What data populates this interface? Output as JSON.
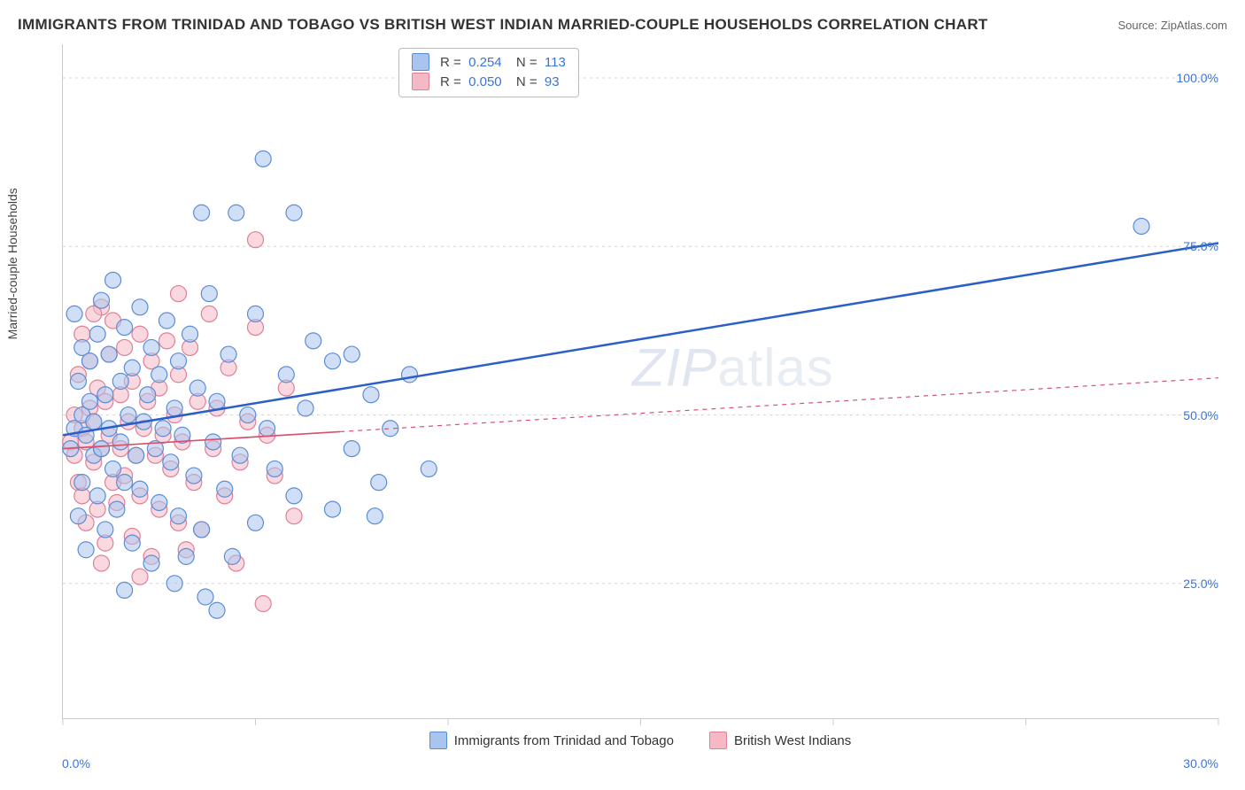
{
  "title": "IMMIGRANTS FROM TRINIDAD AND TOBAGO VS BRITISH WEST INDIAN MARRIED-COUPLE HOUSEHOLDS CORRELATION CHART",
  "source": "Source: ZipAtlas.com",
  "watermark": "ZIPatlas",
  "y_label": "Married-couple Households",
  "chart": {
    "type": "scatter",
    "background_color": "#ffffff",
    "grid_color": "#d6d6d6",
    "grid_dash": "3,4",
    "axis_color": "#cccccc",
    "xlim": [
      0,
      30
    ],
    "ylim": [
      5,
      105
    ],
    "x_ticks": [
      0,
      5,
      10,
      15,
      20,
      25,
      30
    ],
    "x_tick_labels_shown": {
      "0": "0.0%",
      "30": "30.0%"
    },
    "y_gridlines": [
      25,
      50,
      75,
      100
    ],
    "y_tick_labels": {
      "25": "25.0%",
      "50": "50.0%",
      "75": "75.0%",
      "100": "100.0%"
    },
    "tick_label_color": "#3b74d8",
    "marker_radius": 9,
    "marker_opacity": 0.55,
    "series": [
      {
        "key": "trinidad",
        "label": "Immigrants from Trinidad and Tobago",
        "fill": "#a9c5ef",
        "stroke": "#5c8cd6",
        "trend": {
          "x1": 0,
          "y1": 47,
          "x2": 30,
          "y2": 75.5,
          "solid_to_x": 30,
          "color": "#2a5fc7",
          "width": 2.5,
          "dash": ""
        },
        "stats": {
          "R": "0.254",
          "N": "113"
        }
      },
      {
        "key": "bwi",
        "label": "British West Indians",
        "fill": "#f4b9c5",
        "stroke": "#e07f95",
        "trend": {
          "x1": 0,
          "y1": 45,
          "x2": 30,
          "y2": 55.5,
          "solid_to_x": 7.2,
          "color": "#d94f6d",
          "width": 1.7,
          "dash": "5,5"
        },
        "stats": {
          "R": "0.050",
          "N": "93"
        }
      }
    ],
    "points": {
      "trinidad": [
        [
          0.2,
          45
        ],
        [
          0.3,
          48
        ],
        [
          0.3,
          65
        ],
        [
          0.4,
          35
        ],
        [
          0.4,
          55
        ],
        [
          0.5,
          40
        ],
        [
          0.5,
          50
        ],
        [
          0.5,
          60
        ],
        [
          0.6,
          30
        ],
        [
          0.6,
          47
        ],
        [
          0.7,
          52
        ],
        [
          0.7,
          58
        ],
        [
          0.8,
          44
        ],
        [
          0.8,
          49
        ],
        [
          0.9,
          38
        ],
        [
          0.9,
          62
        ],
        [
          1.0,
          45
        ],
        [
          1.0,
          67
        ],
        [
          1.1,
          33
        ],
        [
          1.1,
          53
        ],
        [
          1.2,
          48
        ],
        [
          1.2,
          59
        ],
        [
          1.3,
          42
        ],
        [
          1.3,
          70
        ],
        [
          1.4,
          36
        ],
        [
          1.5,
          55
        ],
        [
          1.5,
          46
        ],
        [
          1.6,
          40
        ],
        [
          1.6,
          63
        ],
        [
          1.7,
          50
        ],
        [
          1.8,
          31
        ],
        [
          1.8,
          57
        ],
        [
          1.9,
          44
        ],
        [
          2.0,
          39
        ],
        [
          2.0,
          66
        ],
        [
          2.1,
          49
        ],
        [
          2.2,
          53
        ],
        [
          2.3,
          28
        ],
        [
          2.3,
          60
        ],
        [
          2.4,
          45
        ],
        [
          2.5,
          37
        ],
        [
          2.5,
          56
        ],
        [
          2.6,
          48
        ],
        [
          2.7,
          64
        ],
        [
          2.8,
          43
        ],
        [
          2.9,
          51
        ],
        [
          3.0,
          35
        ],
        [
          3.0,
          58
        ],
        [
          3.1,
          47
        ],
        [
          3.2,
          29
        ],
        [
          3.3,
          62
        ],
        [
          3.4,
          41
        ],
        [
          3.5,
          54
        ],
        [
          3.6,
          33
        ],
        [
          3.6,
          80
        ],
        [
          3.8,
          68
        ],
        [
          3.9,
          46
        ],
        [
          4.0,
          52
        ],
        [
          4.2,
          39
        ],
        [
          4.3,
          59
        ],
        [
          4.5,
          80
        ],
        [
          4.6,
          44
        ],
        [
          4.8,
          50
        ],
        [
          5.0,
          65
        ],
        [
          5.0,
          34
        ],
        [
          5.2,
          88
        ],
        [
          5.3,
          48
        ],
        [
          5.5,
          42
        ],
        [
          5.8,
          56
        ],
        [
          6.0,
          38
        ],
        [
          6.0,
          80
        ],
        [
          6.3,
          51
        ],
        [
          6.5,
          61
        ],
        [
          7.0,
          36
        ],
        [
          7.0,
          58
        ],
        [
          7.5,
          45
        ],
        [
          8.0,
          53
        ],
        [
          8.1,
          35
        ],
        [
          8.5,
          48
        ],
        [
          9.0,
          56
        ],
        [
          9.5,
          42
        ],
        [
          3.7,
          23
        ],
        [
          4.0,
          21
        ],
        [
          4.4,
          29
        ],
        [
          2.9,
          25
        ],
        [
          1.6,
          24
        ],
        [
          7.5,
          59
        ],
        [
          8.2,
          40
        ],
        [
          28.0,
          78
        ]
      ],
      "bwi": [
        [
          0.2,
          46
        ],
        [
          0.3,
          44
        ],
        [
          0.3,
          50
        ],
        [
          0.4,
          40
        ],
        [
          0.4,
          56
        ],
        [
          0.5,
          38
        ],
        [
          0.5,
          48
        ],
        [
          0.5,
          62
        ],
        [
          0.6,
          34
        ],
        [
          0.6,
          46
        ],
        [
          0.7,
          51
        ],
        [
          0.7,
          58
        ],
        [
          0.8,
          43
        ],
        [
          0.8,
          49
        ],
        [
          0.9,
          36
        ],
        [
          0.9,
          54
        ],
        [
          1.0,
          45
        ],
        [
          1.0,
          66
        ],
        [
          1.1,
          31
        ],
        [
          1.1,
          52
        ],
        [
          1.2,
          47
        ],
        [
          1.2,
          59
        ],
        [
          1.3,
          40
        ],
        [
          1.3,
          64
        ],
        [
          1.4,
          37
        ],
        [
          1.5,
          53
        ],
        [
          1.5,
          45
        ],
        [
          1.6,
          41
        ],
        [
          1.6,
          60
        ],
        [
          1.7,
          49
        ],
        [
          1.8,
          32
        ],
        [
          1.8,
          55
        ],
        [
          1.9,
          44
        ],
        [
          2.0,
          38
        ],
        [
          2.0,
          62
        ],
        [
          2.1,
          48
        ],
        [
          2.2,
          52
        ],
        [
          2.3,
          29
        ],
        [
          2.3,
          58
        ],
        [
          2.4,
          44
        ],
        [
          2.5,
          36
        ],
        [
          2.5,
          54
        ],
        [
          2.6,
          47
        ],
        [
          2.7,
          61
        ],
        [
          2.8,
          42
        ],
        [
          2.9,
          50
        ],
        [
          3.0,
          34
        ],
        [
          3.0,
          56
        ],
        [
          3.1,
          46
        ],
        [
          3.2,
          30
        ],
        [
          3.3,
          60
        ],
        [
          3.4,
          40
        ],
        [
          3.5,
          52
        ],
        [
          3.6,
          33
        ],
        [
          3.8,
          65
        ],
        [
          3.9,
          45
        ],
        [
          4.0,
          51
        ],
        [
          4.2,
          38
        ],
        [
          4.3,
          57
        ],
        [
          4.5,
          28
        ],
        [
          4.6,
          43
        ],
        [
          4.8,
          49
        ],
        [
          5.0,
          63
        ],
        [
          5.0,
          76
        ],
        [
          5.3,
          47
        ],
        [
          5.5,
          41
        ],
        [
          5.8,
          54
        ],
        [
          6.0,
          35
        ],
        [
          0.8,
          65
        ],
        [
          3.0,
          68
        ],
        [
          5.2,
          22
        ],
        [
          2.0,
          26
        ],
        [
          1.0,
          28
        ]
      ]
    }
  }
}
